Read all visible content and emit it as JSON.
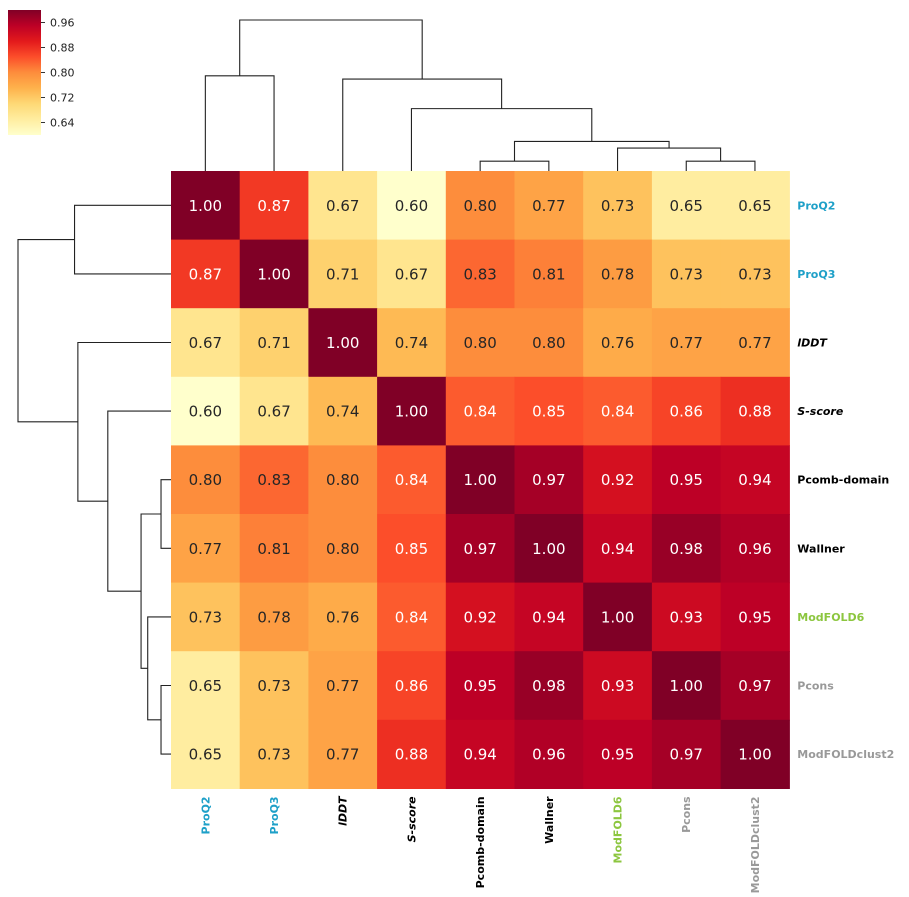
{
  "chart_data": {
    "type": "heatmap",
    "labels": [
      "ProQ2",
      "ProQ3",
      "lDDT",
      "S-score",
      "Pcomb-domain",
      "Wallner",
      "ModFOLD6",
      "Pcons",
      "ModFOLDclust2"
    ],
    "label_colors": [
      "#1ea0c8",
      "#1ea0c8",
      "#000000",
      "#000000",
      "#000000",
      "#000000",
      "#8cc63f",
      "#999999",
      "#999999"
    ],
    "label_italic": [
      false,
      false,
      true,
      true,
      false,
      false,
      false,
      false,
      false
    ],
    "matrix": [
      [
        1.0,
        0.87,
        0.67,
        0.6,
        0.8,
        0.77,
        0.73,
        0.65,
        0.65
      ],
      [
        0.87,
        1.0,
        0.71,
        0.67,
        0.83,
        0.81,
        0.78,
        0.73,
        0.73
      ],
      [
        0.67,
        0.71,
        1.0,
        0.74,
        0.8,
        0.8,
        0.76,
        0.77,
        0.77
      ],
      [
        0.6,
        0.67,
        0.74,
        1.0,
        0.84,
        0.85,
        0.84,
        0.86,
        0.88
      ],
      [
        0.8,
        0.83,
        0.8,
        0.84,
        1.0,
        0.97,
        0.92,
        0.95,
        0.94
      ],
      [
        0.77,
        0.81,
        0.8,
        0.85,
        0.97,
        1.0,
        0.94,
        0.98,
        0.96
      ],
      [
        0.73,
        0.78,
        0.76,
        0.84,
        0.92,
        0.94,
        1.0,
        0.93,
        0.95
      ],
      [
        0.65,
        0.73,
        0.77,
        0.86,
        0.95,
        0.98,
        0.93,
        1.0,
        0.97
      ],
      [
        0.65,
        0.73,
        0.77,
        0.88,
        0.94,
        0.96,
        0.95,
        0.97,
        1.0
      ]
    ],
    "colormap": "YlOrRd",
    "vmin": 0.6,
    "vmax": 1.0,
    "colorbar_ticks": [
      "0.96",
      "0.88",
      "0.80",
      "0.72",
      "0.64"
    ],
    "dendrogram_linkage": [
      {
        "left": 7,
        "right": 8,
        "height": 0.03
      },
      {
        "left": 6,
        "right": "c0",
        "height": 0.07
      },
      {
        "left": 4,
        "right": 5,
        "height": 0.03
      },
      {
        "left": "c2",
        "right": "c1",
        "height": 0.09
      },
      {
        "left": 3,
        "right": "c3",
        "height": 0.19
      },
      {
        "left": 2,
        "right": "c4",
        "height": 0.28
      },
      {
        "left": 0,
        "right": 1,
        "height": 0.29
      },
      {
        "left": "c6",
        "right": "c5",
        "height": 0.46
      }
    ]
  }
}
